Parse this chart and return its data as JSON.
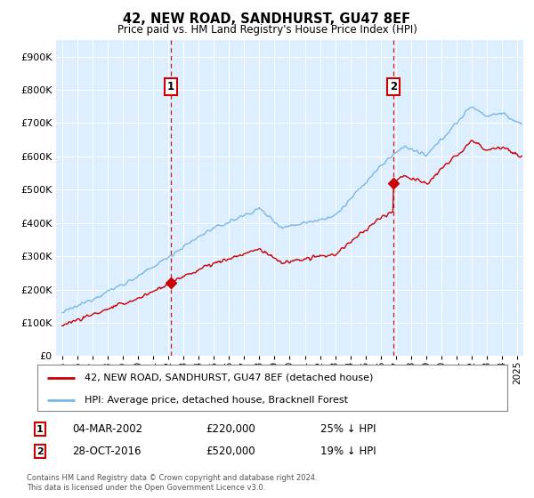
{
  "title": "42, NEW ROAD, SANDHURST, GU47 8EF",
  "subtitle": "Price paid vs. HM Land Registry's House Price Index (HPI)",
  "ytick_values": [
    0,
    100000,
    200000,
    300000,
    400000,
    500000,
    600000,
    700000,
    800000,
    900000
  ],
  "ylim": [
    0,
    950000
  ],
  "xlim_start": 1994.6,
  "xlim_end": 2025.4,
  "hpi_color": "#7ab8e8",
  "sale_color": "#cc0000",
  "sale1_x": 2002.17,
  "sale1_y": 220000,
  "sale2_x": 2016.83,
  "sale2_y": 520000,
  "legend_sale_label": "42, NEW ROAD, SANDHURST, GU47 8EF (detached house)",
  "legend_hpi_label": "HPI: Average price, detached house, Bracknell Forest",
  "footnote": "Contains HM Land Registry data © Crown copyright and database right 2024.\nThis data is licensed under the Open Government Licence v3.0.",
  "background_color": "#ffffff",
  "plot_bg_color": "#ddeeff"
}
